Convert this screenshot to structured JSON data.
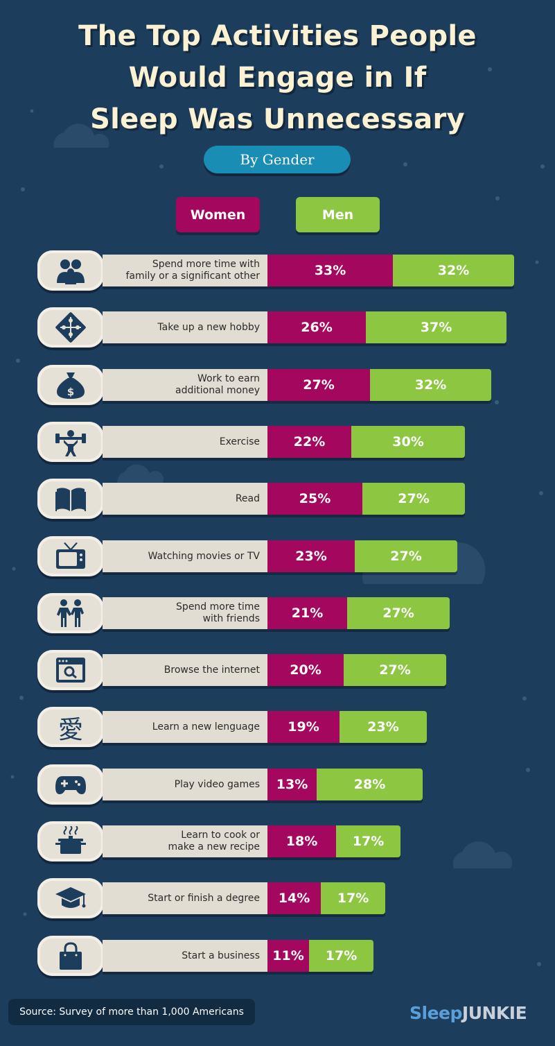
{
  "title_lines": [
    "The Top Activities People",
    "Would Engage in If",
    "Sleep Was Unnecessary"
  ],
  "subtitle": "By Gender",
  "legend": {
    "women": "Women",
    "men": "Men"
  },
  "colors": {
    "background": "#1c3d5c",
    "women": "#a3085e",
    "men": "#8dc641",
    "pill": "#1a8db5"
  },
  "chart_data": {
    "type": "bar",
    "orientation": "horizontal-stacked",
    "title": "The Top Activities People Would Engage in If Sleep Was Unnecessary",
    "subtitle": "By Gender",
    "categories": [
      "Spend more time with\nfamily or a significant other",
      "Take up a new hobby",
      "Work to earn\nadditional money",
      "Exercise",
      "Read",
      "Watching movies or TV",
      "Spend more time\nwith friends",
      "Browse the internet",
      "Learn a new lenguage",
      "Play video games",
      "Learn to cook or\nmake a new recipe",
      "Start or finish a degree",
      "Start a business"
    ],
    "icons": [
      "family-icon",
      "puzzle-icon",
      "money-bag-icon",
      "weightlifter-icon",
      "book-icon",
      "tv-icon",
      "friends-icon",
      "browser-search-icon",
      "kanji-love-icon",
      "gamepad-icon",
      "cooking-pot-icon",
      "graduation-cap-icon",
      "shopping-bag-icon"
    ],
    "series": [
      {
        "name": "Women",
        "values": [
          33,
          26,
          27,
          22,
          25,
          23,
          21,
          20,
          19,
          13,
          18,
          14,
          11
        ]
      },
      {
        "name": "Men",
        "values": [
          32,
          37,
          32,
          30,
          27,
          27,
          27,
          27,
          23,
          28,
          17,
          17,
          17
        ]
      }
    ],
    "value_suffix": "%",
    "legend_position": "top"
  },
  "footer": {
    "source": "Source: Survey of more than 1,000 Americans",
    "logo_part1": "Sleep",
    "logo_part2": "JUNKIE"
  }
}
